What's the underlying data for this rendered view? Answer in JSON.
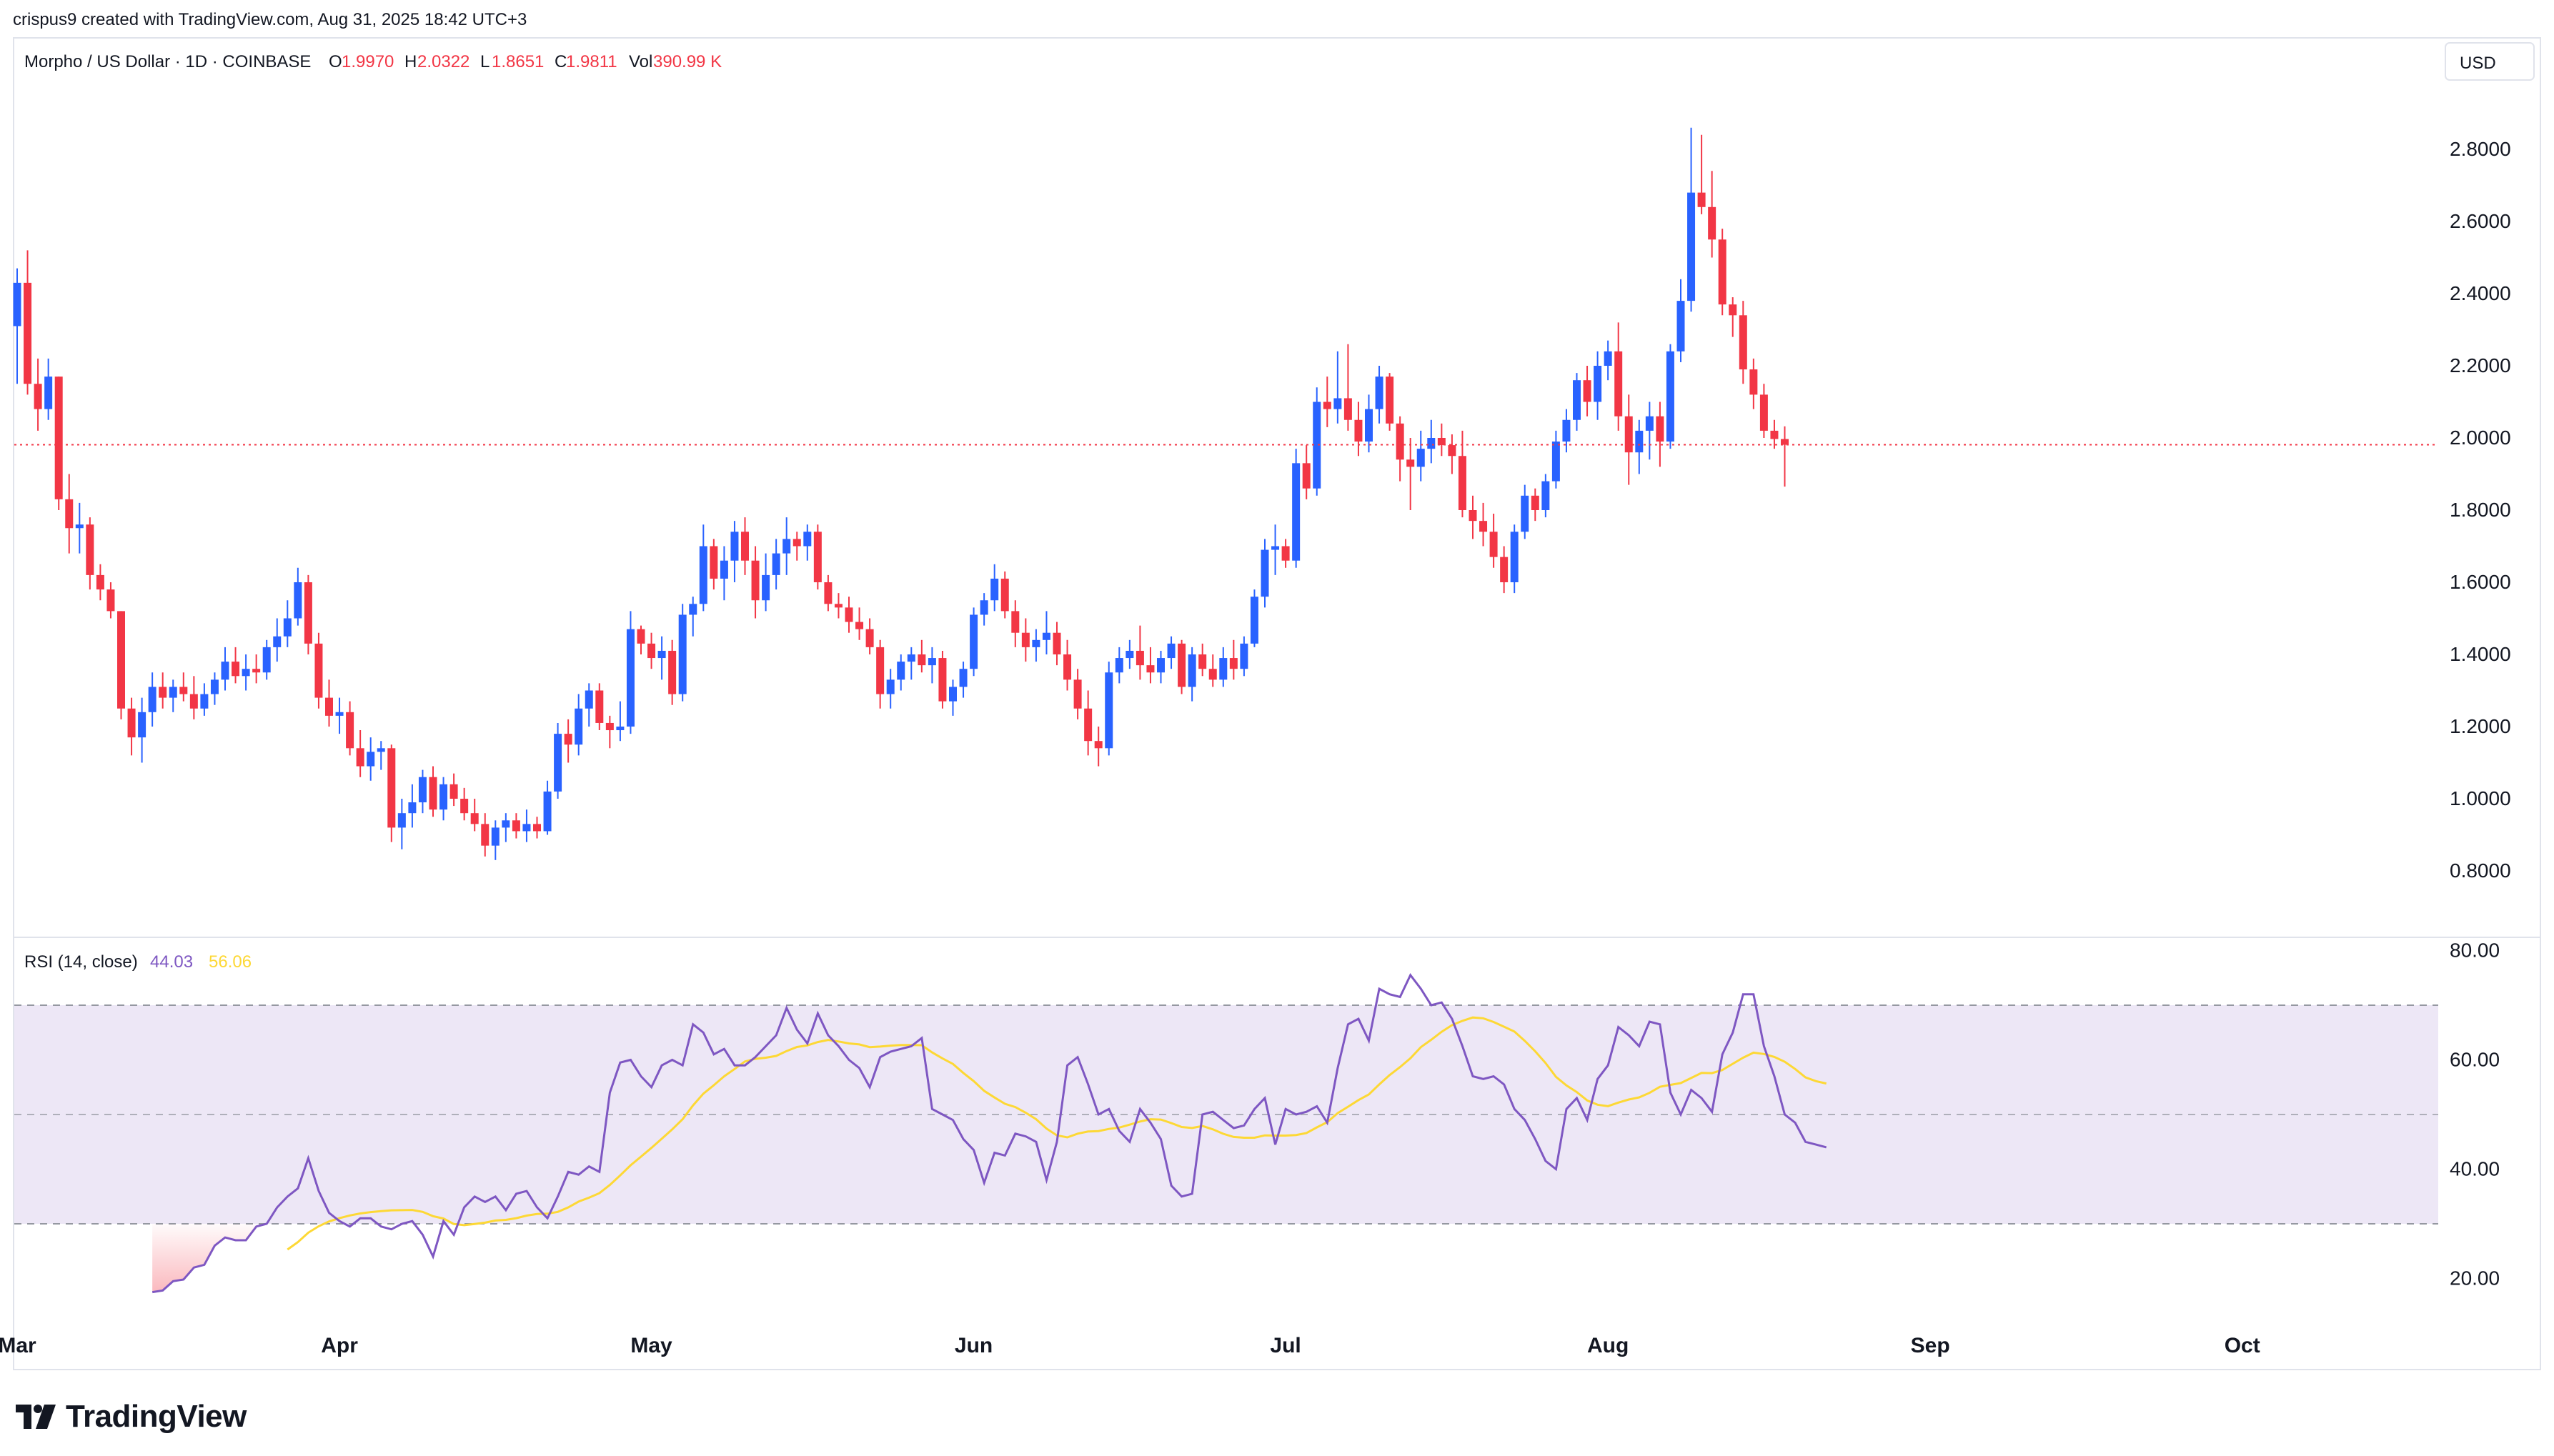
{
  "header": {
    "attribution": "crispus9 created with TradingView.com, Aug 31, 2025 18:42 UTC+3"
  },
  "legend": {
    "symbol": "Morpho / US Dollar · 1D · COINBASE",
    "open_label": "O",
    "open": "1.9970",
    "high_label": "H",
    "high": "2.0322",
    "low_label": "L",
    "low": "1.8651",
    "close_label": "C",
    "close": "1.9811",
    "vol_label": "Vol",
    "vol": "390.99 K"
  },
  "price_axis": {
    "currency": "USD",
    "ticks": [
      "2.8000",
      "2.6000",
      "2.4000",
      "2.2000",
      "2.0000",
      "1.8000",
      "1.6000",
      "1.4000",
      "1.2000",
      "1.0000",
      "0.8000"
    ]
  },
  "rsi": {
    "label": "RSI (14, close)",
    "value": "44.03",
    "ma_value": "56.06",
    "ticks": [
      "80.00",
      "60.00",
      "40.00",
      "20.00"
    ]
  },
  "time_axis": {
    "labels": [
      "Mar",
      "Apr",
      "May",
      "Jun",
      "Jul",
      "Aug",
      "Sep",
      "Oct"
    ]
  },
  "branding": {
    "name": "TradingView"
  },
  "colors": {
    "up": "#2962ff",
    "down": "#f23645",
    "rsi_line": "#7e57c2",
    "rsi_ma": "#fdd835",
    "rsi_band": "#ede7f6",
    "price_line": "#f23645"
  },
  "chart_data": {
    "type": "candlestick",
    "interval": "1D",
    "y_range": [
      0.7,
      2.93
    ],
    "current_price": 1.9811,
    "start_date": "2025-03-01",
    "candles": [
      [
        2.31,
        2.47,
        2.15,
        2.43
      ],
      [
        2.43,
        2.52,
        2.12,
        2.15
      ],
      [
        2.15,
        2.22,
        2.02,
        2.08
      ],
      [
        2.08,
        2.22,
        2.05,
        2.17
      ],
      [
        2.17,
        2.17,
        1.8,
        1.83
      ],
      [
        1.83,
        1.9,
        1.68,
        1.75
      ],
      [
        1.75,
        1.82,
        1.68,
        1.76
      ],
      [
        1.76,
        1.78,
        1.58,
        1.62
      ],
      [
        1.62,
        1.65,
        1.55,
        1.58
      ],
      [
        1.58,
        1.6,
        1.5,
        1.52
      ],
      [
        1.52,
        1.52,
        1.22,
        1.25
      ],
      [
        1.25,
        1.28,
        1.12,
        1.17
      ],
      [
        1.17,
        1.28,
        1.1,
        1.24
      ],
      [
        1.24,
        1.35,
        1.2,
        1.31
      ],
      [
        1.31,
        1.35,
        1.25,
        1.28
      ],
      [
        1.28,
        1.33,
        1.24,
        1.31
      ],
      [
        1.31,
        1.35,
        1.27,
        1.29
      ],
      [
        1.29,
        1.34,
        1.22,
        1.25
      ],
      [
        1.25,
        1.32,
        1.23,
        1.29
      ],
      [
        1.29,
        1.35,
        1.26,
        1.33
      ],
      [
        1.33,
        1.42,
        1.3,
        1.38
      ],
      [
        1.38,
        1.42,
        1.32,
        1.34
      ],
      [
        1.34,
        1.4,
        1.3,
        1.36
      ],
      [
        1.36,
        1.4,
        1.32,
        1.35
      ],
      [
        1.35,
        1.44,
        1.33,
        1.42
      ],
      [
        1.42,
        1.5,
        1.38,
        1.45
      ],
      [
        1.45,
        1.55,
        1.42,
        1.5
      ],
      [
        1.5,
        1.64,
        1.48,
        1.6
      ],
      [
        1.6,
        1.62,
        1.4,
        1.43
      ],
      [
        1.43,
        1.46,
        1.25,
        1.28
      ],
      [
        1.28,
        1.33,
        1.2,
        1.23
      ],
      [
        1.23,
        1.28,
        1.18,
        1.24
      ],
      [
        1.24,
        1.27,
        1.12,
        1.14
      ],
      [
        1.14,
        1.19,
        1.06,
        1.09
      ],
      [
        1.09,
        1.17,
        1.05,
        1.13
      ],
      [
        1.13,
        1.16,
        1.08,
        1.14
      ],
      [
        1.14,
        1.15,
        0.88,
        0.92
      ],
      [
        0.92,
        1.0,
        0.86,
        0.96
      ],
      [
        0.96,
        1.04,
        0.92,
        0.99
      ],
      [
        0.99,
        1.08,
        0.96,
        1.06
      ],
      [
        1.06,
        1.09,
        0.95,
        0.97
      ],
      [
        0.97,
        1.06,
        0.94,
        1.04
      ],
      [
        1.04,
        1.07,
        0.98,
        1.0
      ],
      [
        1.0,
        1.03,
        0.94,
        0.96
      ],
      [
        0.96,
        1.0,
        0.91,
        0.93
      ],
      [
        0.93,
        0.96,
        0.84,
        0.87
      ],
      [
        0.87,
        0.94,
        0.83,
        0.92
      ],
      [
        0.92,
        0.96,
        0.88,
        0.94
      ],
      [
        0.94,
        0.96,
        0.89,
        0.91
      ],
      [
        0.91,
        0.97,
        0.88,
        0.93
      ],
      [
        0.93,
        0.95,
        0.89,
        0.91
      ],
      [
        0.91,
        1.05,
        0.9,
        1.02
      ],
      [
        1.02,
        1.21,
        1.0,
        1.18
      ],
      [
        1.18,
        1.22,
        1.1,
        1.15
      ],
      [
        1.15,
        1.29,
        1.12,
        1.25
      ],
      [
        1.25,
        1.32,
        1.2,
        1.3
      ],
      [
        1.3,
        1.32,
        1.19,
        1.21
      ],
      [
        1.21,
        1.23,
        1.14,
        1.19
      ],
      [
        1.19,
        1.27,
        1.16,
        1.2
      ],
      [
        1.2,
        1.52,
        1.18,
        1.47
      ],
      [
        1.47,
        1.48,
        1.4,
        1.43
      ],
      [
        1.43,
        1.46,
        1.36,
        1.39
      ],
      [
        1.39,
        1.45,
        1.33,
        1.41
      ],
      [
        1.41,
        1.44,
        1.26,
        1.29
      ],
      [
        1.29,
        1.54,
        1.27,
        1.51
      ],
      [
        1.51,
        1.56,
        1.45,
        1.54
      ],
      [
        1.54,
        1.76,
        1.52,
        1.7
      ],
      [
        1.7,
        1.72,
        1.58,
        1.61
      ],
      [
        1.61,
        1.7,
        1.55,
        1.66
      ],
      [
        1.66,
        1.77,
        1.6,
        1.74
      ],
      [
        1.74,
        1.78,
        1.62,
        1.66
      ],
      [
        1.66,
        1.7,
        1.5,
        1.55
      ],
      [
        1.55,
        1.68,
        1.52,
        1.62
      ],
      [
        1.62,
        1.72,
        1.58,
        1.68
      ],
      [
        1.68,
        1.78,
        1.62,
        1.72
      ],
      [
        1.72,
        1.74,
        1.66,
        1.7
      ],
      [
        1.7,
        1.76,
        1.66,
        1.74
      ],
      [
        1.74,
        1.76,
        1.58,
        1.6
      ],
      [
        1.6,
        1.62,
        1.52,
        1.54
      ],
      [
        1.54,
        1.57,
        1.5,
        1.53
      ],
      [
        1.53,
        1.56,
        1.46,
        1.49
      ],
      [
        1.49,
        1.53,
        1.44,
        1.47
      ],
      [
        1.47,
        1.5,
        1.4,
        1.42
      ],
      [
        1.42,
        1.44,
        1.25,
        1.29
      ],
      [
        1.29,
        1.36,
        1.25,
        1.33
      ],
      [
        1.33,
        1.4,
        1.3,
        1.38
      ],
      [
        1.38,
        1.42,
        1.33,
        1.4
      ],
      [
        1.4,
        1.44,
        1.35,
        1.37
      ],
      [
        1.37,
        1.42,
        1.32,
        1.39
      ],
      [
        1.39,
        1.41,
        1.25,
        1.27
      ],
      [
        1.27,
        1.33,
        1.23,
        1.31
      ],
      [
        1.31,
        1.38,
        1.28,
        1.36
      ],
      [
        1.36,
        1.53,
        1.34,
        1.51
      ],
      [
        1.51,
        1.57,
        1.48,
        1.55
      ],
      [
        1.55,
        1.65,
        1.52,
        1.61
      ],
      [
        1.61,
        1.63,
        1.5,
        1.52
      ],
      [
        1.52,
        1.55,
        1.42,
        1.46
      ],
      [
        1.46,
        1.5,
        1.38,
        1.42
      ],
      [
        1.42,
        1.47,
        1.38,
        1.44
      ],
      [
        1.44,
        1.52,
        1.4,
        1.46
      ],
      [
        1.46,
        1.49,
        1.37,
        1.4
      ],
      [
        1.4,
        1.44,
        1.3,
        1.33
      ],
      [
        1.33,
        1.36,
        1.22,
        1.25
      ],
      [
        1.25,
        1.3,
        1.12,
        1.16
      ],
      [
        1.16,
        1.2,
        1.09,
        1.14
      ],
      [
        1.14,
        1.38,
        1.12,
        1.35
      ],
      [
        1.35,
        1.42,
        1.32,
        1.39
      ],
      [
        1.39,
        1.44,
        1.36,
        1.41
      ],
      [
        1.41,
        1.48,
        1.33,
        1.37
      ],
      [
        1.37,
        1.42,
        1.32,
        1.35
      ],
      [
        1.35,
        1.41,
        1.32,
        1.39
      ],
      [
        1.39,
        1.45,
        1.36,
        1.43
      ],
      [
        1.43,
        1.44,
        1.29,
        1.31
      ],
      [
        1.31,
        1.42,
        1.27,
        1.4
      ],
      [
        1.4,
        1.43,
        1.34,
        1.36
      ],
      [
        1.36,
        1.4,
        1.31,
        1.33
      ],
      [
        1.33,
        1.42,
        1.31,
        1.39
      ],
      [
        1.39,
        1.44,
        1.33,
        1.36
      ],
      [
        1.36,
        1.45,
        1.34,
        1.43
      ],
      [
        1.43,
        1.58,
        1.42,
        1.56
      ],
      [
        1.56,
        1.72,
        1.53,
        1.69
      ],
      [
        1.69,
        1.76,
        1.62,
        1.7
      ],
      [
        1.7,
        1.72,
        1.64,
        1.66
      ],
      [
        1.66,
        1.97,
        1.64,
        1.93
      ],
      [
        1.93,
        1.98,
        1.83,
        1.86
      ],
      [
        1.86,
        2.14,
        1.84,
        2.1
      ],
      [
        2.1,
        2.17,
        2.03,
        2.08
      ],
      [
        2.08,
        2.24,
        2.04,
        2.11
      ],
      [
        2.11,
        2.26,
        2.02,
        2.05
      ],
      [
        2.05,
        2.1,
        1.95,
        1.99
      ],
      [
        1.99,
        2.12,
        1.96,
        2.08
      ],
      [
        2.08,
        2.2,
        2.04,
        2.17
      ],
      [
        2.17,
        2.18,
        2.02,
        2.04
      ],
      [
        2.04,
        2.06,
        1.88,
        1.94
      ],
      [
        1.94,
        2.0,
        1.8,
        1.92
      ],
      [
        1.92,
        2.02,
        1.88,
        1.97
      ],
      [
        1.97,
        2.05,
        1.93,
        2.0
      ],
      [
        2.0,
        2.04,
        1.95,
        1.98
      ],
      [
        1.98,
        2.01,
        1.9,
        1.95
      ],
      [
        1.95,
        2.02,
        1.78,
        1.8
      ],
      [
        1.8,
        1.84,
        1.72,
        1.77
      ],
      [
        1.77,
        1.82,
        1.7,
        1.74
      ],
      [
        1.74,
        1.79,
        1.64,
        1.67
      ],
      [
        1.67,
        1.7,
        1.57,
        1.6
      ],
      [
        1.6,
        1.76,
        1.57,
        1.74
      ],
      [
        1.74,
        1.87,
        1.72,
        1.84
      ],
      [
        1.84,
        1.86,
        1.77,
        1.8
      ],
      [
        1.8,
        1.9,
        1.78,
        1.88
      ],
      [
        1.88,
        2.02,
        1.86,
        1.99
      ],
      [
        1.99,
        2.08,
        1.96,
        2.05
      ],
      [
        2.05,
        2.18,
        2.02,
        2.16
      ],
      [
        2.16,
        2.2,
        2.06,
        2.1
      ],
      [
        2.1,
        2.24,
        2.05,
        2.2
      ],
      [
        2.2,
        2.27,
        2.16,
        2.24
      ],
      [
        2.24,
        2.32,
        2.02,
        2.06
      ],
      [
        2.06,
        2.12,
        1.87,
        1.96
      ],
      [
        1.96,
        2.05,
        1.9,
        2.02
      ],
      [
        2.02,
        2.1,
        1.94,
        2.06
      ],
      [
        2.06,
        2.1,
        1.92,
        1.99
      ],
      [
        1.99,
        2.26,
        1.97,
        2.24
      ],
      [
        2.24,
        2.44,
        2.21,
        2.38
      ],
      [
        2.38,
        2.86,
        2.35,
        2.68
      ],
      [
        2.68,
        2.84,
        2.62,
        2.64
      ],
      [
        2.64,
        2.74,
        2.5,
        2.55
      ],
      [
        2.55,
        2.58,
        2.34,
        2.37
      ],
      [
        2.37,
        2.39,
        2.28,
        2.34
      ],
      [
        2.34,
        2.38,
        2.15,
        2.19
      ],
      [
        2.19,
        2.22,
        2.08,
        2.12
      ],
      [
        2.12,
        2.15,
        2.0,
        2.02
      ],
      [
        2.02,
        2.05,
        1.97,
        1.997
      ],
      [
        1.997,
        2.0322,
        1.8651,
        1.9811
      ]
    ],
    "rsi_values": [
      17.5,
      17.8,
      19.5,
      19.8,
      22.0,
      22.5,
      26.0,
      27.5,
      27.0,
      27.0,
      29.5,
      30.0,
      33.0,
      35.0,
      36.5,
      42.0,
      36.0,
      32.0,
      30.5,
      29.5,
      31.0,
      31.0,
      29.5,
      29.0,
      30.0,
      30.5,
      28.0,
      24.0,
      30.5,
      28.0,
      33.0,
      35.0,
      34.0,
      35.0,
      32.5,
      35.5,
      36.0,
      33.0,
      31.0,
      35.0,
      39.5,
      39.0,
      40.5,
      39.5,
      54.0,
      59.5,
      60.0,
      57.0,
      55.0,
      59.0,
      60.0,
      59.0,
      66.5,
      65.0,
      61.0,
      62.0,
      59.0,
      59.0,
      60.5,
      62.5,
      64.5,
      69.5,
      65.5,
      63.0,
      68.5,
      64.5,
      62.5,
      60.0,
      58.5,
      55.0,
      60.5,
      61.5,
      62.0,
      62.5,
      64.0,
      51.0,
      50.0,
      49.0,
      45.5,
      43.5,
      37.5,
      43.0,
      42.5,
      46.5,
      46.0,
      45.0,
      38.0,
      45.0,
      59.0,
      60.5,
      55.5,
      50.0,
      51.0,
      47.0,
      45.0,
      51.0,
      48.5,
      45.5,
      37.0,
      35.0,
      35.5,
      50.0,
      50.5,
      49.0,
      47.5,
      48.0,
      51.0,
      53.0,
      44.5,
      51.0,
      50.0,
      50.5,
      51.5,
      48.5,
      58.5,
      66.5,
      67.5,
      63.5,
      73.0,
      72.0,
      71.5,
      75.5,
      73.0,
      70.0,
      70.5,
      67.5,
      62.5,
      57.0,
      56.5,
      57.0,
      55.5,
      51.0,
      49.0,
      45.5,
      41.5,
      40.0,
      51.0,
      53.0,
      49.0,
      56.5,
      59.0,
      66.0,
      64.5,
      62.5,
      67.0,
      66.5,
      54.0,
      50.0,
      54.5,
      53.0,
      50.5,
      61.0,
      65.0,
      72.0,
      72.0,
      62.5,
      57.0,
      50.0,
      48.5,
      45.0,
      44.5,
      44.0
    ]
  }
}
